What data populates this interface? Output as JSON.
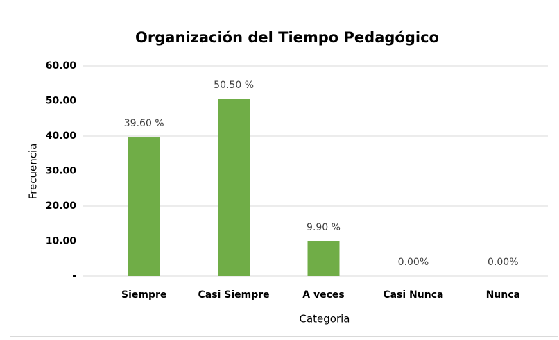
{
  "chart_data": {
    "type": "bar",
    "title": "Organización del Tiempo Pedagógico",
    "x_label": "Categoria",
    "y_label": "Frecuencia",
    "categories": [
      "Siempre",
      "Casi Siempre",
      "A veces",
      "Casi Nunca",
      "Nunca"
    ],
    "values": [
      39.6,
      50.5,
      9.9,
      0,
      0
    ],
    "value_labels": [
      "39.60 %",
      "50.50 %",
      "9.90 %",
      "0.00%",
      "0.00%"
    ],
    "color": "#70ad47",
    "ylim": [
      0,
      60
    ],
    "yticks": [
      {
        "value": 0,
        "label": "-"
      },
      {
        "value": 10,
        "label": "10.00"
      },
      {
        "value": 20,
        "label": "20.00"
      },
      {
        "value": 30,
        "label": "30.00"
      },
      {
        "value": 40,
        "label": "40.00"
      },
      {
        "value": 50,
        "label": "50.00"
      },
      {
        "value": 60,
        "label": "60.00"
      }
    ],
    "grid": true
  }
}
